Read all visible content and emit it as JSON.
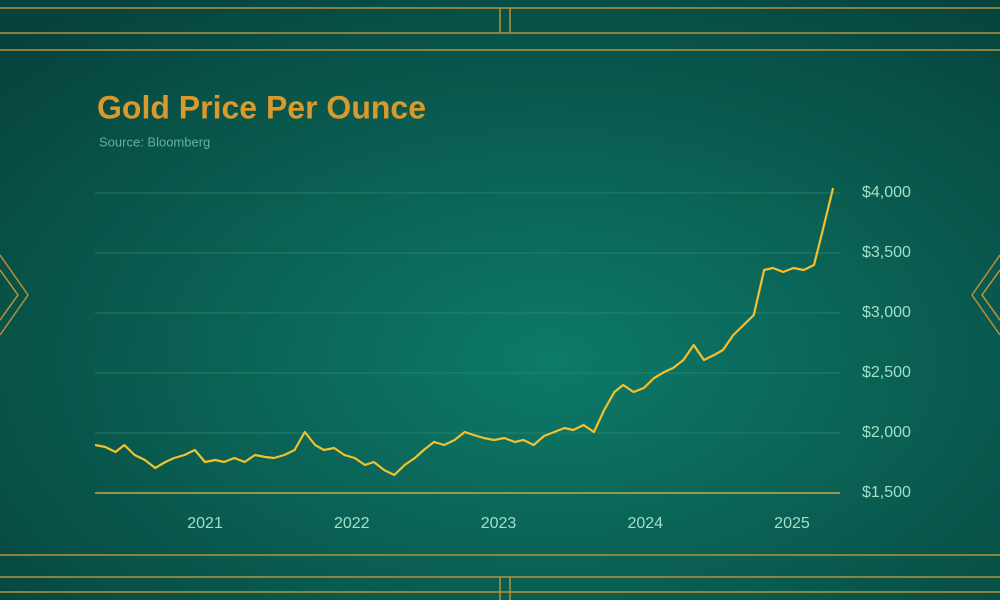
{
  "chart_data": {
    "type": "line",
    "title": "Gold Price Per Ounce",
    "subtitle": "Source: Bloomberg",
    "x": [
      2020.25,
      2020.32,
      2020.39,
      2020.45,
      2020.52,
      2020.59,
      2020.66,
      2020.73,
      2020.79,
      2020.86,
      2020.93,
      2021.0,
      2021.07,
      2021.13,
      2021.2,
      2021.27,
      2021.34,
      2021.41,
      2021.47,
      2021.54,
      2021.61,
      2021.68,
      2021.75,
      2021.81,
      2021.88,
      2021.95,
      2022.02,
      2022.09,
      2022.15,
      2022.22,
      2022.29,
      2022.36,
      2022.43,
      2022.49,
      2022.56,
      2022.63,
      2022.7,
      2022.77,
      2022.83,
      2022.9,
      2022.97,
      2023.04,
      2023.11,
      2023.17,
      2023.24,
      2023.31,
      2023.38,
      2023.45,
      2023.51,
      2023.58,
      2023.65,
      2023.72,
      2023.79,
      2023.85,
      2023.92,
      2023.99,
      2024.06,
      2024.13,
      2024.19,
      2024.26,
      2024.33,
      2024.4,
      2024.47,
      2024.53,
      2024.6,
      2024.67,
      2024.74,
      2024.81,
      2024.87,
      2024.94,
      2025.01,
      2025.08,
      2025.15,
      2025.21,
      2025.28
    ],
    "values": [
      1900,
      1883,
      1842,
      1900,
      1817,
      1775,
      1708,
      1758,
      1792,
      1817,
      1858,
      1758,
      1775,
      1758,
      1792,
      1758,
      1817,
      1800,
      1792,
      1817,
      1858,
      2008,
      1900,
      1858,
      1875,
      1817,
      1792,
      1733,
      1758,
      1692,
      1650,
      1733,
      1792,
      1858,
      1925,
      1900,
      1942,
      2008,
      1983,
      1958,
      1942,
      1958,
      1925,
      1942,
      1900,
      1975,
      2008,
      2042,
      2025,
      2067,
      2008,
      2192,
      2342,
      2400,
      2342,
      2375,
      2458,
      2508,
      2542,
      2608,
      2733,
      2608,
      2650,
      2692,
      2817,
      2900,
      2983,
      3358,
      3375,
      3342,
      3375,
      3358,
      3400,
      3692,
      4042
    ],
    "color": "#f3c02f",
    "xlim": [
      2020.25,
      2025.3
    ],
    "xticks": [
      2021,
      2022,
      2023,
      2024,
      2025
    ],
    "ylim": [
      1500,
      4050
    ],
    "yticks": [
      {
        "value": 1500,
        "label": "$1,500"
      },
      {
        "value": 2000,
        "label": "$2,000"
      },
      {
        "value": 2500,
        "label": "$2,500"
      },
      {
        "value": 3000,
        "label": "$3,000"
      },
      {
        "value": 3500,
        "label": "$3,500"
      },
      {
        "value": 4000,
        "label": "$4,000"
      }
    ],
    "grid": true
  }
}
